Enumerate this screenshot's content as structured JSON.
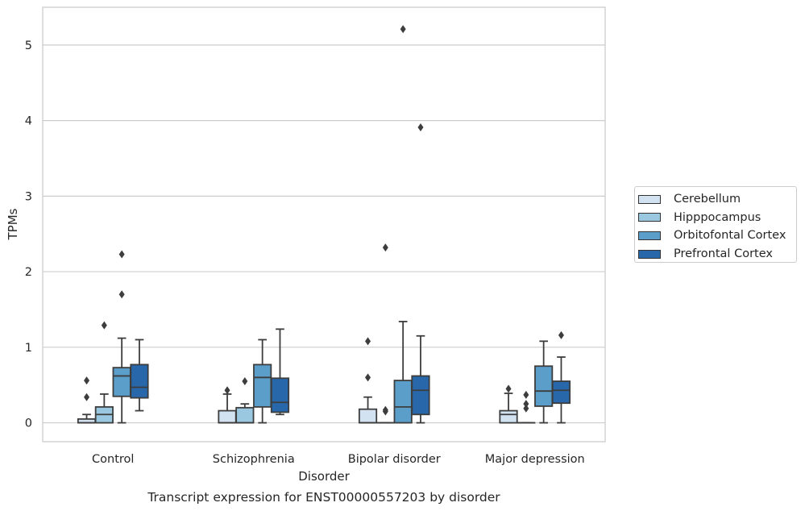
{
  "chart_data": {
    "type": "box",
    "title": "",
    "xlabel": "Disorder",
    "ylabel": "TPMs",
    "caption": "Transcript expression for ENST00000557203 by disorder",
    "categories": [
      "Control",
      "Schizophrenia",
      "Bipolar disorder",
      "Major depression"
    ],
    "ylim": [
      -0.25,
      5.5
    ],
    "yticks": [
      0,
      1,
      2,
      3,
      4,
      5
    ],
    "grid": true,
    "legend_position": "right",
    "series": [
      {
        "name": "Cerebellum",
        "color": "#d2e2f1",
        "boxes": [
          {
            "whislo": 0.0,
            "q1": 0.0,
            "med": 0.0,
            "q3": 0.05,
            "whishi": 0.11,
            "fliers": [
              0.34,
              0.56
            ]
          },
          {
            "whislo": 0.0,
            "q1": 0.0,
            "med": 0.0,
            "q3": 0.16,
            "whishi": 0.38,
            "fliers": [
              0.43
            ]
          },
          {
            "whislo": 0.0,
            "q1": 0.0,
            "med": 0.0,
            "q3": 0.18,
            "whishi": 0.34,
            "fliers": [
              0.6,
              1.08
            ]
          },
          {
            "whislo": 0.0,
            "q1": 0.0,
            "med": 0.11,
            "q3": 0.16,
            "whishi": 0.39,
            "fliers": [
              0.45
            ]
          }
        ]
      },
      {
        "name": "Hipppocampus",
        "color": "#9ac8e0",
        "boxes": [
          {
            "whislo": 0.0,
            "q1": 0.0,
            "med": 0.11,
            "q3": 0.21,
            "whishi": 0.38,
            "fliers": [
              1.29
            ]
          },
          {
            "whislo": 0.0,
            "q1": 0.0,
            "med": 0.0,
            "q3": 0.2,
            "whishi": 0.25,
            "fliers": [
              0.55
            ]
          },
          {
            "whislo": 0.0,
            "q1": 0.0,
            "med": 0.0,
            "q3": 0.0,
            "whishi": 0.0,
            "fliers": [
              0.15,
              0.17,
              2.32
            ]
          },
          {
            "whislo": 0.0,
            "q1": 0.0,
            "med": 0.0,
            "q3": 0.0,
            "whishi": 0.0,
            "fliers": [
              0.19,
              0.25,
              0.37
            ]
          }
        ]
      },
      {
        "name": "Orbitofontal Cortex",
        "color": "#5a9ec9",
        "boxes": [
          {
            "whislo": 0.0,
            "q1": 0.35,
            "med": 0.62,
            "q3": 0.73,
            "whishi": 1.12,
            "fliers": [
              1.7,
              2.23
            ]
          },
          {
            "whislo": 0.0,
            "q1": 0.21,
            "med": 0.6,
            "q3": 0.77,
            "whishi": 1.1,
            "fliers": []
          },
          {
            "whislo": 0.0,
            "q1": 0.0,
            "med": 0.21,
            "q3": 0.56,
            "whishi": 1.34,
            "fliers": [
              5.21
            ]
          },
          {
            "whislo": 0.0,
            "q1": 0.22,
            "med": 0.42,
            "q3": 0.75,
            "whishi": 1.08,
            "fliers": []
          }
        ]
      },
      {
        "name": "Prefrontal Cortex",
        "color": "#2767aa",
        "boxes": [
          {
            "whislo": 0.16,
            "q1": 0.33,
            "med": 0.47,
            "q3": 0.77,
            "whishi": 1.1,
            "fliers": []
          },
          {
            "whislo": 0.11,
            "q1": 0.14,
            "med": 0.27,
            "q3": 0.59,
            "whishi": 1.24,
            "fliers": []
          },
          {
            "whislo": 0.0,
            "q1": 0.11,
            "med": 0.43,
            "q3": 0.62,
            "whishi": 1.15,
            "fliers": [
              3.91
            ]
          },
          {
            "whislo": 0.0,
            "q1": 0.26,
            "med": 0.43,
            "q3": 0.55,
            "whishi": 0.87,
            "fliers": [
              1.16
            ]
          }
        ]
      }
    ]
  }
}
